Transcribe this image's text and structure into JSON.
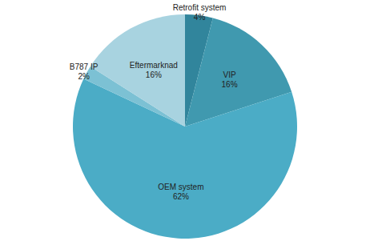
{
  "chart_data": {
    "type": "pie",
    "categories": [
      "Retrofit system",
      "VIP",
      "OEM system",
      "B787 IP",
      "Eftermarknad"
    ],
    "values": [
      4,
      16,
      62,
      2,
      16
    ],
    "value_labels": [
      "4%",
      "16%",
      "62%",
      "2%",
      "16%"
    ],
    "colors": [
      "#31859c",
      "#4099af",
      "#4bacc6",
      "#7cc1d4",
      "#a8d3e0"
    ],
    "data_labels": true
  }
}
